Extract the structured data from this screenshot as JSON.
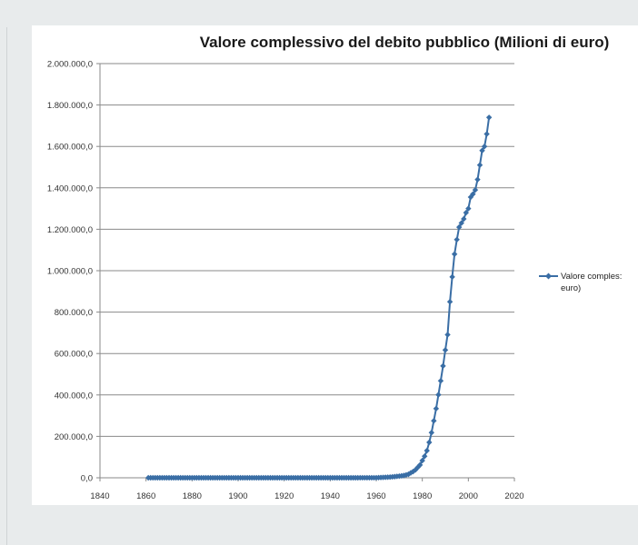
{
  "chart_data": {
    "type": "line",
    "title": "Valore complessivo del debito pubblico (Milioni di euro)",
    "xlabel": "",
    "ylabel": "",
    "xlim": [
      1840,
      2020
    ],
    "ylim": [
      0,
      2000000
    ],
    "x_ticks": [
      "1840",
      "1860",
      "1880",
      "1900",
      "1920",
      "1940",
      "1960",
      "1980",
      "2000",
      "2020"
    ],
    "y_ticks": [
      "0,0",
      "200.000,0",
      "400.000,0",
      "600.000,0",
      "800.000,0",
      "1.000.000,0",
      "1.200.000,0",
      "1.400.000,0",
      "1.600.000,0",
      "1.800.000,0",
      "2.000.000,0"
    ],
    "grid": true,
    "legend_position": "right",
    "series": [
      {
        "name": "Valore complessivo del debito pubblico (Milioni di euro)",
        "legend_lines": [
          "Valore comples:",
          "euro)"
        ],
        "color": "#3a6ea5",
        "x": [
          1861,
          1862,
          1863,
          1864,
          1865,
          1866,
          1867,
          1868,
          1869,
          1870,
          1871,
          1872,
          1873,
          1874,
          1875,
          1876,
          1877,
          1878,
          1879,
          1880,
          1881,
          1882,
          1883,
          1884,
          1885,
          1886,
          1887,
          1888,
          1889,
          1890,
          1891,
          1892,
          1893,
          1894,
          1895,
          1896,
          1897,
          1898,
          1899,
          1900,
          1901,
          1902,
          1903,
          1904,
          1905,
          1906,
          1907,
          1908,
          1909,
          1910,
          1911,
          1912,
          1913,
          1914,
          1915,
          1916,
          1917,
          1918,
          1919,
          1920,
          1921,
          1922,
          1923,
          1924,
          1925,
          1926,
          1927,
          1928,
          1929,
          1930,
          1931,
          1932,
          1933,
          1934,
          1935,
          1936,
          1937,
          1938,
          1939,
          1940,
          1941,
          1942,
          1943,
          1944,
          1945,
          1946,
          1947,
          1948,
          1949,
          1950,
          1951,
          1952,
          1953,
          1954,
          1955,
          1956,
          1957,
          1958,
          1959,
          1960,
          1961,
          1962,
          1963,
          1964,
          1965,
          1966,
          1967,
          1968,
          1969,
          1970,
          1971,
          1972,
          1973,
          1974,
          1975,
          1976,
          1977,
          1978,
          1979,
          1980,
          1981,
          1982,
          1983,
          1984,
          1985,
          1986,
          1987,
          1988,
          1989,
          1990,
          1991,
          1992,
          1993,
          1994,
          1995,
          1996,
          1997,
          1998,
          1999,
          2000,
          2001,
          2002,
          2003,
          2004,
          2005,
          2006,
          2007,
          2008,
          2009
        ],
        "values": [
          1,
          1,
          1,
          1,
          1,
          1,
          1,
          1,
          1,
          1,
          1,
          1,
          1,
          1,
          1,
          1,
          1,
          1,
          1,
          1,
          1,
          1,
          1,
          1,
          1,
          1,
          1,
          1,
          1,
          1,
          1,
          1,
          1,
          1,
          1,
          1,
          1,
          1,
          1,
          1,
          1,
          1,
          1,
          1,
          1,
          1,
          1,
          1,
          1,
          1,
          1,
          1,
          1,
          1,
          2,
          2,
          3,
          4,
          5,
          6,
          6,
          6,
          6,
          6,
          6,
          6,
          6,
          6,
          6,
          6,
          6,
          6,
          7,
          7,
          7,
          8,
          9,
          10,
          12,
          14,
          17,
          21,
          26,
          30,
          32,
          35,
          37,
          40,
          43,
          46,
          49,
          52,
          55,
          58,
          62,
          66,
          70,
          75,
          80,
          85,
          1000,
          1500,
          2000,
          2500,
          3000,
          3500,
          4500,
          5500,
          7000,
          8000,
          9500,
          11000,
          14000,
          17000,
          24000,
          30000,
          38000,
          50000,
          62000,
          83000,
          104000,
          131000,
          171000,
          218000,
          275000,
          334000,
          401000,
          468000,
          540000,
          617000,
          691000,
          850000,
          970000,
          1080000,
          1150000,
          1210000,
          1230000,
          1250000,
          1280000,
          1300000,
          1355000,
          1370000,
          1390000,
          1440000,
          1510000,
          1580000,
          1600000,
          1660000,
          1740000
        ]
      }
    ]
  }
}
